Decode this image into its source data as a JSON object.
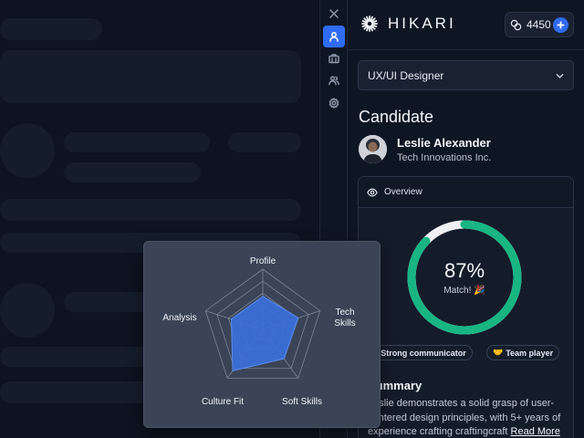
{
  "app": {
    "logo_text": "HIKARI",
    "credits": "4450"
  },
  "rail": {
    "items": [
      {
        "name": "close",
        "icon": "close-icon",
        "active": false
      },
      {
        "name": "candidate",
        "icon": "user-icon",
        "active": true
      },
      {
        "name": "jobs",
        "icon": "briefcase-icon",
        "active": false
      },
      {
        "name": "team",
        "icon": "users-icon",
        "active": false
      },
      {
        "name": "settings",
        "icon": "gear-icon",
        "active": false
      }
    ]
  },
  "role_select": {
    "value": "UX/UI Designer"
  },
  "candidate": {
    "section_title": "Candidate",
    "name": "Leslie Alexander",
    "company": "Tech Innovations Inc."
  },
  "overview": {
    "label": "Overview",
    "match_percent": 87,
    "match_value": "87%",
    "match_label": "Match! 🎉",
    "tags": [
      {
        "label": "Strong communicator",
        "icon": "speech-bubble-icon"
      },
      {
        "label": "Team player",
        "icon": "handshake-icon"
      }
    ],
    "summary_title": "Summary",
    "summary_text": "Leslie demonstrates a solid grasp of user-centered design principles, with 5+ years of experience crafting craftingcraft",
    "read_more": "Read More"
  },
  "radar": {
    "axes": [
      {
        "label_1": "Profile",
        "label_2": ""
      },
      {
        "label_1": "Tech",
        "label_2": "Skills"
      },
      {
        "label_1": "Soft Skills",
        "label_2": ""
      },
      {
        "label_1": "Culture Fit",
        "label_2": ""
      },
      {
        "label_1": "Analysis",
        "label_2": ""
      }
    ],
    "values": [
      0.55,
      0.62,
      0.6,
      0.85,
      0.55
    ],
    "levels": 5,
    "fill_color": "#3b6fd8",
    "grid_color": "#7b8496"
  },
  "colors": {
    "accent": "#2f6cf2",
    "gauge": "#18b583",
    "gauge_track": "#eef0f3"
  }
}
